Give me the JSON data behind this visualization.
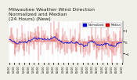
{
  "title_line1": "Milwaukee Weather Wind Direction",
  "title_line2": "Normalized and Median",
  "title_line3": "(24 Hours) (New)",
  "background_color": "#f0f0e8",
  "plot_background": "#ffffff",
  "bar_color": "#cc0000",
  "median_color": "#0000cc",
  "ylim": [
    -1.8,
    1.8
  ],
  "num_points": 288,
  "seed": 42,
  "title_fontsize": 4.5,
  "tick_fontsize": 2.8,
  "legend_blue_label": "Normalized",
  "legend_red_label": "Median",
  "grid_color": "#aaaaaa"
}
